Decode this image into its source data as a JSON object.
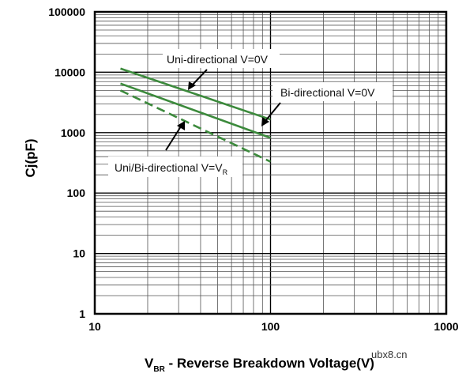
{
  "chart_data": {
    "type": "line",
    "x_scale": "log",
    "y_scale": "log",
    "xlim": [
      10,
      1000
    ],
    "ylim": [
      1,
      100000
    ],
    "x_ticks": [
      "10",
      "100",
      "1000"
    ],
    "y_ticks": [
      "1",
      "10",
      "100",
      "1000",
      "10000",
      "100000"
    ],
    "xlabel": {
      "main": "V",
      "sub": "BR",
      "rest": " - Reverse Breakdown Voltage(V)"
    },
    "ylabel": "Cj(pF)",
    "grid": true,
    "series": [
      {
        "name": "Uni-directional V=0V",
        "style": "solid",
        "color": "#3c8a3c",
        "x": [
          14,
          100
        ],
        "y": [
          11500,
          1650
        ]
      },
      {
        "name": "Bi-directional V=0V",
        "style": "solid",
        "color": "#3c8a3c",
        "x": [
          14,
          100
        ],
        "y": [
          6500,
          820
        ]
      },
      {
        "name": "Uni/Bi-directional V=VR",
        "style": "dashed",
        "color": "#3c8a3c",
        "x": [
          14,
          100
        ],
        "y": [
          5000,
          330
        ]
      }
    ],
    "annotations": [
      {
        "text": "Uni-directional V=0V",
        "sub": ""
      },
      {
        "text": "Bi-directional V=0V",
        "sub": ""
      },
      {
        "text": "Uni/Bi-directional V=V",
        "sub": "R"
      }
    ]
  },
  "watermark": "ubx8.cn"
}
